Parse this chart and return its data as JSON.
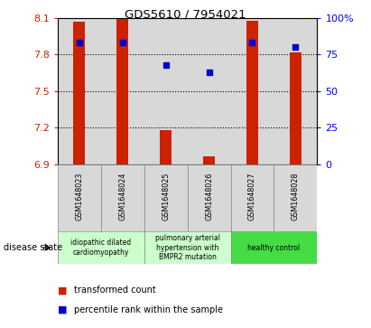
{
  "title": "GDS5610 / 7954021",
  "samples": [
    "GSM1648023",
    "GSM1648024",
    "GSM1648025",
    "GSM1648026",
    "GSM1648027",
    "GSM1648028"
  ],
  "red_values": [
    8.07,
    8.1,
    7.18,
    6.96,
    8.08,
    7.82
  ],
  "blue_percentiles": [
    83,
    83,
    68,
    63,
    83,
    80
  ],
  "y_min": 6.9,
  "y_max": 8.1,
  "y_ticks": [
    6.9,
    7.2,
    7.5,
    7.8,
    8.1
  ],
  "right_y_ticks": [
    0,
    25,
    50,
    75,
    100
  ],
  "right_y_tick_labels": [
    "0",
    "25",
    "50",
    "75",
    "100%"
  ],
  "bar_color": "#cc2200",
  "dot_color": "#0000cc",
  "plot_bg_color": "#d8d8d8",
  "group_labels": [
    "idiopathic dilated\ncardiomyopathy",
    "pulmonary arterial\nhypertension with\nBMPR2 mutation",
    "healthy control"
  ],
  "group_colors": [
    "#ccffcc",
    "#ccffcc",
    "#44dd44"
  ],
  "group_ranges": [
    [
      0,
      2
    ],
    [
      2,
      4
    ],
    [
      4,
      6
    ]
  ],
  "disease_state_label": "disease state",
  "legend_labels": [
    "transformed count",
    "percentile rank within the sample"
  ],
  "legend_colors": [
    "#cc2200",
    "#0000cc"
  ]
}
